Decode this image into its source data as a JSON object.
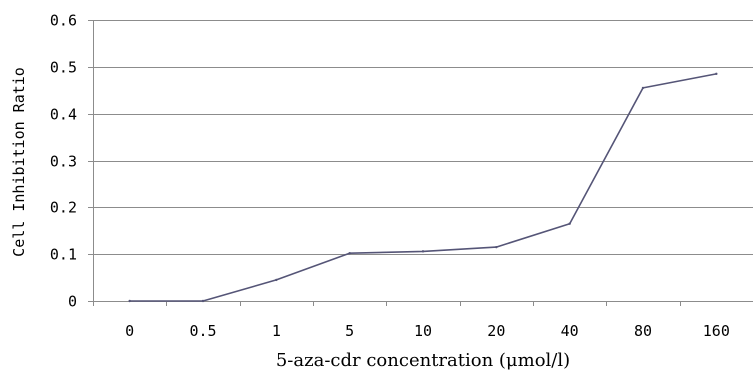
{
  "chart_data": {
    "type": "line",
    "title": "",
    "xlabel": "5-aza-cdr concentration (μmol/l)",
    "ylabel": "Cell Inhibition Ratio",
    "categories": [
      "0",
      "0.5",
      "1",
      "5",
      "10",
      "20",
      "40",
      "80",
      "160"
    ],
    "series": [
      {
        "values": [
          0.0,
          0.0,
          0.045,
          0.102,
          0.106,
          0.115,
          0.165,
          0.455,
          0.485
        ]
      }
    ],
    "ylim": [
      0,
      0.6
    ],
    "yticks": [
      "0",
      "0.1",
      "0.2",
      "0.3",
      "0.4",
      "0.5",
      "0.6"
    ],
    "grid": "horizontal",
    "legend": "none",
    "colors": {
      "line": "#555577",
      "grid": "#8c8c8c",
      "axis": "#8c8c8c"
    }
  }
}
